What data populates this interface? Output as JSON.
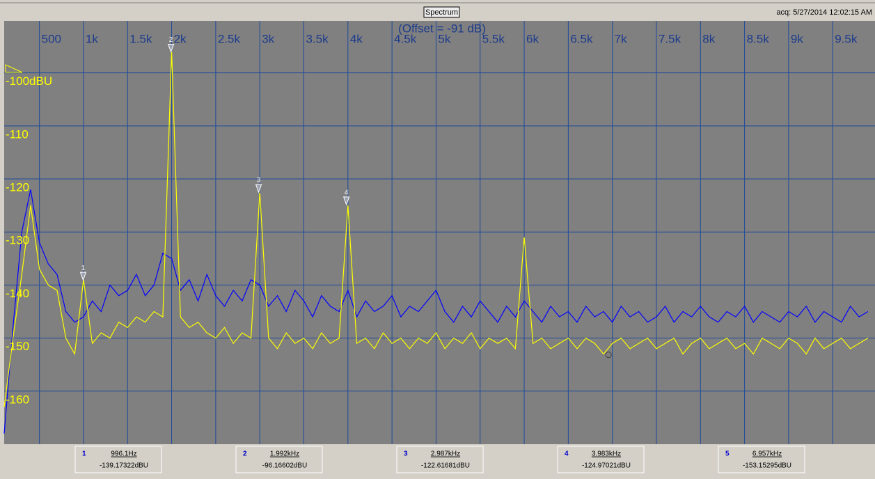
{
  "window": {
    "title": "Spectrum",
    "acquired": "acq: 5/27/2014 12:02:15 AM"
  },
  "chart_data": {
    "type": "line",
    "subtitle": "(Offset = -91 dB)",
    "xlim": [
      100,
      9980
    ],
    "ylim": [
      -170,
      -90.2
    ],
    "xticks": [
      {
        "value": 500,
        "label": "500"
      },
      {
        "value": 1000,
        "label": "1k"
      },
      {
        "value": 1500,
        "label": "1.5k"
      },
      {
        "value": 2000,
        "label": "2k"
      },
      {
        "value": 2500,
        "label": "2.5k"
      },
      {
        "value": 3000,
        "label": "3k"
      },
      {
        "value": 3500,
        "label": "3.5k"
      },
      {
        "value": 4000,
        "label": "4k"
      },
      {
        "value": 4500,
        "label": "4.5k"
      },
      {
        "value": 5000,
        "label": "5k"
      },
      {
        "value": 5500,
        "label": "5.5k"
      },
      {
        "value": 6000,
        "label": "6k"
      },
      {
        "value": 6500,
        "label": "6.5k"
      },
      {
        "value": 7000,
        "label": "7k"
      },
      {
        "value": 7500,
        "label": "7.5k"
      },
      {
        "value": 8000,
        "label": "8k"
      },
      {
        "value": 8500,
        "label": "8.5k"
      },
      {
        "value": 9000,
        "label": "9k"
      },
      {
        "value": 9500,
        "label": "9.5k"
      }
    ],
    "yticks": [
      {
        "value": -100,
        "label": "-100dBU"
      },
      -110,
      -120,
      -130,
      -140,
      -150,
      -160
    ],
    "grid": true,
    "x": [
      100,
      200,
      300,
      400,
      500,
      600,
      700,
      800,
      900,
      1000,
      1100,
      1200,
      1300,
      1400,
      1500,
      1600,
      1700,
      1800,
      1900,
      2000,
      2100,
      2200,
      2300,
      2400,
      2500,
      2600,
      2700,
      2800,
      2900,
      3000,
      3100,
      3200,
      3300,
      3400,
      3500,
      3600,
      3700,
      3800,
      3900,
      4000,
      4100,
      4200,
      4300,
      4400,
      4500,
      4600,
      4700,
      4800,
      4900,
      5000,
      5100,
      5200,
      5300,
      5400,
      5500,
      5600,
      5700,
      5800,
      5900,
      6000,
      6100,
      6200,
      6300,
      6400,
      6500,
      6600,
      6700,
      6800,
      6900,
      7000,
      7100,
      7200,
      7300,
      7400,
      7500,
      7600,
      7700,
      7800,
      7900,
      8000,
      8100,
      8200,
      8300,
      8400,
      8500,
      8600,
      8700,
      8800,
      8900,
      9000,
      9100,
      9200,
      9300,
      9400,
      9500,
      9600,
      9700,
      9800,
      9900
    ],
    "series": [
      {
        "color": "#0000ff",
        "values": [
          -168,
          -148,
          -130,
          -122,
          -132,
          -136,
          -138,
          -145,
          -147,
          -146,
          -143,
          -145,
          -140,
          -142,
          -141,
          -138,
          -142,
          -140,
          -134,
          -135,
          -141,
          -139,
          -143,
          -138,
          -142,
          -144,
          -141,
          -143,
          -139,
          -140,
          -144,
          -142,
          -145,
          -141,
          -143,
          -146,
          -142,
          -144,
          -145,
          -141,
          -146,
          -143,
          -145,
          -144,
          -142,
          -146,
          -144,
          -145,
          -143,
          -141,
          -145,
          -147,
          -144,
          -146,
          -143,
          -145,
          -147,
          -144,
          -146,
          -143,
          -145,
          -147,
          -144,
          -146,
          -145,
          -147,
          -144,
          -146,
          -145,
          -147,
          -144,
          -146,
          -145,
          -147,
          -146,
          -144,
          -147,
          -145,
          -146,
          -144,
          -146,
          -147,
          -145,
          -146,
          -144,
          -147,
          -145,
          -146,
          -147,
          -145,
          -146,
          -144,
          -147,
          -145,
          -146,
          -147,
          -144,
          -146,
          -145
        ]
      },
      {
        "color": "#ffff00",
        "values": [
          -163,
          -150,
          -138,
          -125,
          -137,
          -140,
          -141,
          -150,
          -153,
          -139,
          -151,
          -149,
          -150,
          -147,
          -148,
          -146,
          -147,
          -145,
          -146,
          -96,
          -146,
          -148,
          -147,
          -149,
          -150,
          -148,
          -151,
          -149,
          -150,
          -122.6,
          -150,
          -152,
          -149,
          -151,
          -150,
          -152,
          -149,
          -151,
          -150,
          -125,
          -151,
          -150,
          -152,
          -149,
          -151,
          -150,
          -152,
          -150,
          -151,
          -149,
          -152,
          -150,
          -151,
          -149,
          -152,
          -150,
          -151,
          -150,
          -152,
          -131,
          -151,
          -150,
          -152,
          -151,
          -150,
          -152,
          -150,
          -151,
          -153,
          -151,
          -150,
          -152,
          -151,
          -150,
          -152,
          -151,
          -150,
          -153,
          -151,
          -150,
          -152,
          -151,
          -150,
          -152,
          -151,
          -153,
          -150,
          -151,
          -152,
          -150,
          -151,
          -153,
          -150,
          -152,
          -151,
          -150,
          -152,
          -151,
          -150
        ]
      }
    ],
    "markers": [
      {
        "label": "1",
        "freq": 996.1,
        "level": -139.17322,
        "freq_label": "996.1Hz",
        "level_label": "-139.17322dBU"
      },
      {
        "label": "2",
        "freq": 1992,
        "level": -96.16602,
        "freq_label": "1.992kHz",
        "level_label": "-96.16602dBU"
      },
      {
        "label": "3",
        "freq": 2987,
        "level": -122.61681,
        "freq_label": "2.987kHz",
        "level_label": "-122.61681dBU"
      },
      {
        "label": "4",
        "freq": 3983,
        "level": -124.97021,
        "freq_label": "3.983kHz",
        "level_label": "-124.97021dBU"
      },
      {
        "label": "5",
        "freq": 6957,
        "level": -153.15295,
        "freq_label": "6.957kHz",
        "level_label": "-153.15295dBU"
      }
    ]
  }
}
